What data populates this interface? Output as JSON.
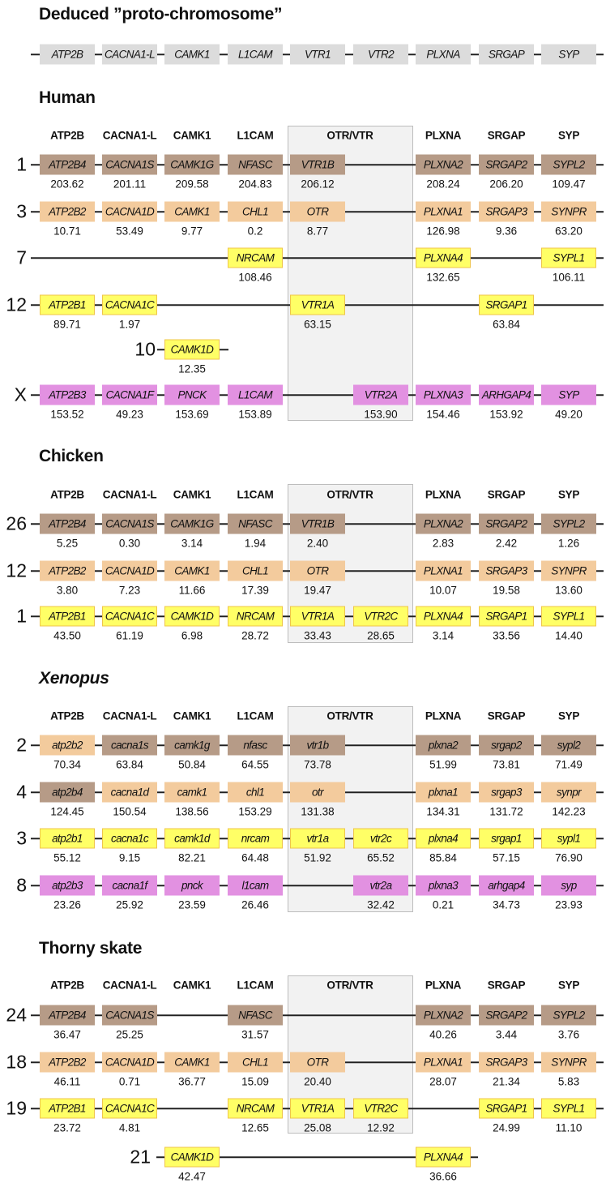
{
  "title": "Deduced ”proto-chromosome”",
  "colors": {
    "brown": "#b69b87",
    "tan": "#f3cb9d",
    "yellow": "#ffff66",
    "magenta": "#e291e1",
    "proto": "#dcdcdc"
  },
  "proto_genes": [
    "ATP2B",
    "CACNA1-L",
    "CAMK1",
    "L1CAM",
    "VTR1",
    "VTR2",
    "PLXNA",
    "SRGAP",
    "SYP"
  ],
  "column_headers": [
    "ATP2B",
    "CACNA1-L",
    "CAMK1",
    "L1CAM",
    "OTR/VTR",
    "PLXNA",
    "SRGAP",
    "SYP"
  ],
  "sections": [
    {
      "species": "Human",
      "rows": [
        {
          "chr": "1",
          "color": "brown",
          "genes": [
            {
              "col": 0,
              "name": "ATP2B4",
              "value": "203.62"
            },
            {
              "col": 1,
              "name": "CACNA1S",
              "value": "201.11"
            },
            {
              "col": 2,
              "name": "CAMK1G",
              "value": "209.58"
            },
            {
              "col": 3,
              "name": "NFASC",
              "value": "204.83"
            },
            {
              "col": 4,
              "name": "VTR1B",
              "value": "206.12"
            },
            {
              "col": 6,
              "name": "PLXNA2",
              "value": "208.24"
            },
            {
              "col": 7,
              "name": "SRGAP2",
              "value": "206.20"
            },
            {
              "col": 8,
              "name": "SYPL2",
              "value": "109.47"
            }
          ]
        },
        {
          "chr": "3",
          "color": "tan",
          "genes": [
            {
              "col": 0,
              "name": "ATP2B2",
              "value": "10.71"
            },
            {
              "col": 1,
              "name": "CACNA1D",
              "value": "53.49"
            },
            {
              "col": 2,
              "name": "CAMK1",
              "value": "9.77"
            },
            {
              "col": 3,
              "name": "CHL1",
              "value": "0.2"
            },
            {
              "col": 4,
              "name": "OTR",
              "value": "8.77"
            },
            {
              "col": 6,
              "name": "PLXNA1",
              "value": "126.98"
            },
            {
              "col": 7,
              "name": "SRGAP3",
              "value": "9.36"
            },
            {
              "col": 8,
              "name": "SYNPR",
              "value": "63.20"
            }
          ]
        },
        {
          "chr": "7",
          "color": "yellow",
          "genes": [
            {
              "col": 3,
              "name": "NRCAM",
              "value": "108.46"
            },
            {
              "col": 6,
              "name": "PLXNA4",
              "value": "132.65"
            },
            {
              "col": 8,
              "name": "SYPL1",
              "value": "106.11"
            }
          ]
        },
        {
          "chr": "12",
          "color": "yellow",
          "genes": [
            {
              "col": 0,
              "name": "ATP2B1",
              "value": "89.71"
            },
            {
              "col": 1,
              "name": "CACNA1C",
              "value": "1.97"
            },
            {
              "col": 4,
              "name": "VTR1A",
              "value": "63.15"
            },
            {
              "col": 7,
              "name": "SRGAP1",
              "value": "63.84"
            }
          ]
        },
        {
          "chr": "10",
          "color": "yellow",
          "genes": [
            {
              "col": 2,
              "name": "CAMK1D",
              "value": "12.35"
            }
          ]
        },
        {
          "chr": "X",
          "color": "magenta",
          "genes": [
            {
              "col": 0,
              "name": "ATP2B3",
              "value": "153.52"
            },
            {
              "col": 1,
              "name": "CACNA1F",
              "value": "49.23"
            },
            {
              "col": 2,
              "name": "PNCK",
              "value": "153.69"
            },
            {
              "col": 3,
              "name": "L1CAM",
              "value": "153.89"
            },
            {
              "col": 5,
              "name": "VTR2A",
              "value": "153.90"
            },
            {
              "col": 6,
              "name": "PLXNA3",
              "value": "154.46"
            },
            {
              "col": 7,
              "name": "ARHGAP4",
              "value": "153.92"
            },
            {
              "col": 8,
              "name": "SYP",
              "value": "49.20"
            }
          ]
        }
      ]
    },
    {
      "species": "Chicken",
      "rows": [
        {
          "chr": "26",
          "color": "brown",
          "genes": [
            {
              "col": 0,
              "name": "ATP2B4",
              "value": "5.25"
            },
            {
              "col": 1,
              "name": "CACNA1S",
              "value": "0.30"
            },
            {
              "col": 2,
              "name": "CAMK1G",
              "value": "3.14"
            },
            {
              "col": 3,
              "name": "NFASC",
              "value": "1.94"
            },
            {
              "col": 4,
              "name": "VTR1B",
              "value": "2.40"
            },
            {
              "col": 6,
              "name": "PLXNA2",
              "value": "2.83"
            },
            {
              "col": 7,
              "name": "SRGAP2",
              "value": "2.42"
            },
            {
              "col": 8,
              "name": "SYPL2",
              "value": "1.26"
            }
          ]
        },
        {
          "chr": "12",
          "color": "tan",
          "genes": [
            {
              "col": 0,
              "name": "ATP2B2",
              "value": "3.80"
            },
            {
              "col": 1,
              "name": "CACNA1D",
              "value": "7.23"
            },
            {
              "col": 2,
              "name": "CAMK1",
              "value": "11.66"
            },
            {
              "col": 3,
              "name": "CHL1",
              "value": "17.39"
            },
            {
              "col": 4,
              "name": "OTR",
              "value": "19.47"
            },
            {
              "col": 6,
              "name": "PLXNA1",
              "value": "10.07"
            },
            {
              "col": 7,
              "name": "SRGAP3",
              "value": "19.58"
            },
            {
              "col": 8,
              "name": "SYNPR",
              "value": "13.60"
            }
          ]
        },
        {
          "chr": "1",
          "color": "yellow",
          "genes": [
            {
              "col": 0,
              "name": "ATP2B1",
              "value": "43.50"
            },
            {
              "col": 1,
              "name": "CACNA1C",
              "value": "61.19"
            },
            {
              "col": 2,
              "name": "CAMK1D",
              "value": "6.98"
            },
            {
              "col": 3,
              "name": "NRCAM",
              "value": "28.72"
            },
            {
              "col": 4,
              "name": "VTR1A",
              "value": "33.43"
            },
            {
              "col": 5,
              "name": "VTR2C",
              "value": "28.65"
            },
            {
              "col": 6,
              "name": "PLXNA4",
              "value": "3.14"
            },
            {
              "col": 7,
              "name": "SRGAP1",
              "value": "33.56"
            },
            {
              "col": 8,
              "name": "SYPL1",
              "value": "14.40"
            }
          ]
        }
      ]
    },
    {
      "species": "Xenopus",
      "rows": [
        {
          "chr": "2",
          "color": "brown",
          "genes": [
            {
              "col": 0,
              "name": "atp2b2",
              "value": "70.34",
              "color": "tan"
            },
            {
              "col": 1,
              "name": "cacna1s",
              "value": "63.84"
            },
            {
              "col": 2,
              "name": "camk1g",
              "value": "50.84"
            },
            {
              "col": 3,
              "name": "nfasc",
              "value": "64.55"
            },
            {
              "col": 4,
              "name": "vtr1b",
              "value": "73.78"
            },
            {
              "col": 6,
              "name": "plxna2",
              "value": "51.99"
            },
            {
              "col": 7,
              "name": "srgap2",
              "value": "73.81"
            },
            {
              "col": 8,
              "name": "sypl2",
              "value": "71.49"
            }
          ]
        },
        {
          "chr": "4",
          "color": "tan",
          "genes": [
            {
              "col": 0,
              "name": "atp2b4",
              "value": "124.45",
              "color": "brown"
            },
            {
              "col": 1,
              "name": "cacna1d",
              "value": "150.54"
            },
            {
              "col": 2,
              "name": "camk1",
              "value": "138.56"
            },
            {
              "col": 3,
              "name": "chl1",
              "value": "153.29"
            },
            {
              "col": 4,
              "name": "otr",
              "value": "131.38"
            },
            {
              "col": 6,
              "name": "plxna1",
              "value": "134.31"
            },
            {
              "col": 7,
              "name": "srgap3",
              "value": "131.72"
            },
            {
              "col": 8,
              "name": "synpr",
              "value": "142.23"
            }
          ]
        },
        {
          "chr": "3",
          "color": "yellow",
          "genes": [
            {
              "col": 0,
              "name": "atp2b1",
              "value": "55.12"
            },
            {
              "col": 1,
              "name": "cacna1c",
              "value": "9.15"
            },
            {
              "col": 2,
              "name": "camk1d",
              "value": "82.21"
            },
            {
              "col": 3,
              "name": "nrcam",
              "value": "64.48"
            },
            {
              "col": 4,
              "name": "vtr1a",
              "value": "51.92"
            },
            {
              "col": 5,
              "name": "vtr2c",
              "value": "65.52"
            },
            {
              "col": 6,
              "name": "plxna4",
              "value": "85.84"
            },
            {
              "col": 7,
              "name": "srgap1",
              "value": "57.15"
            },
            {
              "col": 8,
              "name": "sypl1",
              "value": "76.90"
            }
          ]
        },
        {
          "chr": "8",
          "color": "magenta",
          "genes": [
            {
              "col": 0,
              "name": "atp2b3",
              "value": "23.26"
            },
            {
              "col": 1,
              "name": "cacna1f",
              "value": "25.92"
            },
            {
              "col": 2,
              "name": "pnck",
              "value": "23.59"
            },
            {
              "col": 3,
              "name": "l1cam",
              "value": "26.46"
            },
            {
              "col": 5,
              "name": "vtr2a",
              "value": "32.42"
            },
            {
              "col": 6,
              "name": "plxna3",
              "value": "0.21"
            },
            {
              "col": 7,
              "name": "arhgap4",
              "value": "34.73"
            },
            {
              "col": 8,
              "name": "syp",
              "value": "23.93"
            }
          ]
        }
      ]
    },
    {
      "species": "Thorny skate",
      "rows": [
        {
          "chr": "24",
          "color": "brown",
          "genes": [
            {
              "col": 0,
              "name": "ATP2B4",
              "value": "36.47"
            },
            {
              "col": 1,
              "name": "CACNA1S",
              "value": "25.25"
            },
            {
              "col": 3,
              "name": "NFASC",
              "value": "31.57"
            },
            {
              "col": 6,
              "name": "PLXNA2",
              "value": "40.26"
            },
            {
              "col": 7,
              "name": "SRGAP2",
              "value": "3.44"
            },
            {
              "col": 8,
              "name": "SYPL2",
              "value": "3.76"
            }
          ]
        },
        {
          "chr": "18",
          "color": "tan",
          "genes": [
            {
              "col": 0,
              "name": "ATP2B2",
              "value": "46.11"
            },
            {
              "col": 1,
              "name": "CACNA1D",
              "value": "0.71"
            },
            {
              "col": 2,
              "name": "CAMK1",
              "value": "36.77"
            },
            {
              "col": 3,
              "name": "CHL1",
              "value": "15.09"
            },
            {
              "col": 4,
              "name": "OTR",
              "value": "20.40"
            },
            {
              "col": 6,
              "name": "PLXNA1",
              "value": "28.07"
            },
            {
              "col": 7,
              "name": "SRGAP3",
              "value": "21.34"
            },
            {
              "col": 8,
              "name": "SYNPR",
              "value": "5.83"
            }
          ]
        },
        {
          "chr": "19",
          "color": "yellow",
          "genes": [
            {
              "col": 0,
              "name": "ATP2B1",
              "value": "23.72"
            },
            {
              "col": 1,
              "name": "CACNA1C",
              "value": "4.81"
            },
            {
              "col": 3,
              "name": "NRCAM",
              "value": "12.65"
            },
            {
              "col": 4,
              "name": "VTR1A",
              "value": "25.08"
            },
            {
              "col": 5,
              "name": "VTR2C",
              "value": "12.92"
            },
            {
              "col": 7,
              "name": "SRGAP1",
              "value": "24.99"
            },
            {
              "col": 8,
              "name": "SYPL1",
              "value": "11.10"
            }
          ]
        },
        {
          "chr": "21",
          "color": "yellow",
          "genes": [
            {
              "col": 2,
              "name": "CAMK1D",
              "value": "42.47"
            },
            {
              "col": 6,
              "name": "PLXNA4",
              "value": "36.66"
            }
          ]
        }
      ]
    }
  ]
}
